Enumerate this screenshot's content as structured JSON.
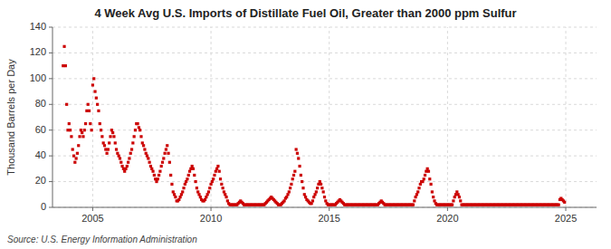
{
  "chart_data": {
    "type": "scatter",
    "title": "4 Week Avg U.S. Imports of Distillate Fuel Oil, Greater than 2000 ppm Sulfur",
    "ylabel": "Thousand Barrels per Day",
    "source": "Source: U.S. Energy Information Administration",
    "xlim": [
      2003.3,
      2026.3
    ],
    "ylim": [
      0,
      140
    ],
    "xticks": [
      2005,
      2010,
      2015,
      2020,
      2025
    ],
    "yticks": [
      0,
      20,
      40,
      60,
      80,
      100,
      120,
      140
    ],
    "grid": true,
    "color": "#cc0000",
    "marker": "square",
    "x": [
      2003.75,
      2003.8,
      2003.85,
      2003.9,
      2003.95,
      2004.0,
      2004.05,
      2004.1,
      2004.15,
      2004.2,
      2004.25,
      2004.3,
      2004.35,
      2004.4,
      2004.45,
      2004.5,
      2004.55,
      2004.6,
      2004.65,
      2004.7,
      2004.75,
      2004.8,
      2004.85,
      2004.9,
      2004.95,
      2005.0,
      2005.05,
      2005.1,
      2005.15,
      2005.2,
      2005.25,
      2005.3,
      2005.35,
      2005.4,
      2005.45,
      2005.5,
      2005.55,
      2005.6,
      2005.65,
      2005.7,
      2005.75,
      2005.8,
      2005.85,
      2005.9,
      2005.95,
      2006.0,
      2006.05,
      2006.1,
      2006.15,
      2006.2,
      2006.25,
      2006.3,
      2006.35,
      2006.4,
      2006.45,
      2006.5,
      2006.55,
      2006.6,
      2006.65,
      2006.7,
      2006.75,
      2006.8,
      2006.85,
      2006.9,
      2006.95,
      2007.0,
      2007.05,
      2007.1,
      2007.15,
      2007.2,
      2007.25,
      2007.3,
      2007.35,
      2007.4,
      2007.45,
      2007.5,
      2007.55,
      2007.6,
      2007.65,
      2007.7,
      2007.75,
      2007.8,
      2007.85,
      2007.9,
      2007.95,
      2008.0,
      2008.05,
      2008.1,
      2008.15,
      2008.2,
      2008.25,
      2008.3,
      2008.35,
      2008.4,
      2008.45,
      2008.5,
      2008.55,
      2008.6,
      2008.65,
      2008.7,
      2008.75,
      2008.8,
      2008.85,
      2008.9,
      2008.95,
      2009.0,
      2009.05,
      2009.1,
      2009.15,
      2009.2,
      2009.25,
      2009.3,
      2009.35,
      2009.4,
      2009.45,
      2009.5,
      2009.55,
      2009.6,
      2009.65,
      2009.7,
      2009.75,
      2009.8,
      2009.85,
      2009.9,
      2009.95,
      2010.0,
      2010.05,
      2010.1,
      2010.15,
      2010.2,
      2010.25,
      2010.3,
      2010.35,
      2010.4,
      2010.45,
      2010.5,
      2010.55,
      2010.6,
      2010.65,
      2010.7,
      2010.75,
      2010.8,
      2010.85,
      2010.9,
      2010.95,
      2011.0,
      2011.05,
      2011.1,
      2011.15,
      2011.2,
      2011.25,
      2011.3,
      2011.35,
      2011.4,
      2011.45,
      2011.5,
      2011.55,
      2011.6,
      2011.65,
      2011.7,
      2011.75,
      2011.8,
      2011.85,
      2011.9,
      2011.95,
      2012.0,
      2012.05,
      2012.1,
      2012.15,
      2012.2,
      2012.25,
      2012.3,
      2012.35,
      2012.4,
      2012.45,
      2012.5,
      2012.55,
      2012.6,
      2012.65,
      2012.7,
      2012.75,
      2012.8,
      2012.85,
      2012.9,
      2012.95,
      2013.0,
      2013.05,
      2013.1,
      2013.15,
      2013.2,
      2013.25,
      2013.3,
      2013.35,
      2013.4,
      2013.45,
      2013.5,
      2013.55,
      2013.6,
      2013.65,
      2013.7,
      2013.75,
      2013.8,
      2013.85,
      2013.9,
      2013.95,
      2014.0,
      2014.05,
      2014.1,
      2014.15,
      2014.2,
      2014.25,
      2014.3,
      2014.35,
      2014.4,
      2014.45,
      2014.5,
      2014.55,
      2014.6,
      2014.65,
      2014.7,
      2014.75,
      2014.8,
      2014.85,
      2014.9,
      2014.95,
      2015.0,
      2015.05,
      2015.1,
      2015.15,
      2015.2,
      2015.25,
      2015.3,
      2015.35,
      2015.4,
      2015.45,
      2015.5,
      2015.55,
      2015.6,
      2015.65,
      2015.7,
      2015.75,
      2015.8,
      2015.85,
      2015.9,
      2015.95,
      2016.0,
      2016.05,
      2016.1,
      2016.15,
      2016.2,
      2016.25,
      2016.3,
      2016.35,
      2016.4,
      2016.45,
      2016.5,
      2016.55,
      2016.6,
      2016.65,
      2016.7,
      2016.75,
      2016.8,
      2016.85,
      2016.9,
      2016.95,
      2017.0,
      2017.05,
      2017.1,
      2017.15,
      2017.2,
      2017.25,
      2017.3,
      2017.35,
      2017.4,
      2017.45,
      2017.5,
      2017.55,
      2017.6,
      2017.65,
      2017.7,
      2017.75,
      2017.8,
      2017.85,
      2017.9,
      2017.95,
      2018.0,
      2018.05,
      2018.1,
      2018.15,
      2018.2,
      2018.25,
      2018.3,
      2018.35,
      2018.4,
      2018.45,
      2018.5,
      2018.55,
      2018.6,
      2018.65,
      2018.7,
      2018.75,
      2018.8,
      2018.85,
      2018.9,
      2018.95,
      2019.0,
      2019.05,
      2019.1,
      2019.15,
      2019.2,
      2019.25,
      2019.3,
      2019.35,
      2019.4,
      2019.45,
      2019.5,
      2019.55,
      2019.6,
      2019.65,
      2019.7,
      2019.75,
      2019.8,
      2019.85,
      2019.9,
      2019.95,
      2020.0,
      2020.05,
      2020.1,
      2020.15,
      2020.2,
      2020.25,
      2020.3,
      2020.35,
      2020.4,
      2020.45,
      2020.5,
      2020.55,
      2020.6,
      2020.65,
      2020.7,
      2020.75,
      2020.8,
      2020.85,
      2020.9,
      2020.95,
      2021.0,
      2021.05,
      2021.1,
      2021.15,
      2021.2,
      2021.25,
      2021.3,
      2021.35,
      2021.4,
      2021.45,
      2021.5,
      2021.55,
      2021.6,
      2021.65,
      2021.7,
      2021.75,
      2021.8,
      2021.85,
      2021.9,
      2021.95,
      2022.0,
      2022.05,
      2022.1,
      2022.15,
      2022.2,
      2022.25,
      2022.3,
      2022.35,
      2022.4,
      2022.45,
      2022.5,
      2022.55,
      2022.6,
      2022.65,
      2022.7,
      2022.75,
      2022.8,
      2022.85,
      2022.9,
      2022.95,
      2023.0,
      2023.05,
      2023.1,
      2023.15,
      2023.2,
      2023.25,
      2023.3,
      2023.35,
      2023.4,
      2023.45,
      2023.5,
      2023.55,
      2023.6,
      2023.65,
      2023.7,
      2023.75,
      2023.8,
      2023.85,
      2023.9,
      2023.95,
      2024.0,
      2024.05,
      2024.1,
      2024.15,
      2024.2,
      2024.25,
      2024.3,
      2024.35,
      2024.4,
      2024.45,
      2024.5,
      2024.55,
      2024.6,
      2024.65,
      2024.7,
      2024.75,
      2024.8,
      2024.85,
      2024.9,
      2024.95
    ],
    "values": [
      110,
      125,
      110,
      80,
      60,
      65,
      60,
      55,
      45,
      40,
      35,
      38,
      42,
      48,
      55,
      60,
      58,
      55,
      60,
      65,
      75,
      80,
      75,
      65,
      60,
      95,
      100,
      90,
      85,
      80,
      75,
      65,
      60,
      55,
      50,
      48,
      45,
      42,
      45,
      50,
      55,
      60,
      58,
      55,
      50,
      45,
      42,
      40,
      38,
      35,
      32,
      30,
      28,
      30,
      32,
      35,
      38,
      42,
      45,
      50,
      55,
      60,
      65,
      65,
      62,
      60,
      55,
      50,
      48,
      45,
      42,
      40,
      38,
      35,
      32,
      30,
      28,
      25,
      22,
      20,
      22,
      25,
      28,
      32,
      35,
      38,
      42,
      45,
      48,
      42,
      35,
      25,
      18,
      12,
      10,
      8,
      5,
      5,
      6,
      8,
      10,
      12,
      15,
      18,
      20,
      22,
      25,
      28,
      30,
      32,
      30,
      25,
      20,
      15,
      12,
      10,
      8,
      6,
      5,
      5,
      6,
      8,
      10,
      12,
      15,
      18,
      20,
      22,
      25,
      28,
      30,
      32,
      28,
      22,
      18,
      15,
      12,
      10,
      8,
      5,
      3,
      2,
      2,
      2,
      2,
      2,
      2,
      2,
      3,
      4,
      5,
      4,
      3,
      2,
      2,
      2,
      2,
      2,
      2,
      2,
      2,
      2,
      2,
      2,
      2,
      2,
      2,
      2,
      2,
      2,
      2,
      3,
      4,
      5,
      6,
      7,
      8,
      7,
      6,
      5,
      4,
      3,
      2,
      2,
      2,
      3,
      4,
      5,
      7,
      8,
      10,
      12,
      15,
      18,
      22,
      25,
      28,
      45,
      42,
      38,
      32,
      25,
      20,
      15,
      10,
      8,
      6,
      5,
      4,
      3,
      3,
      5,
      8,
      10,
      12,
      15,
      18,
      20,
      18,
      15,
      12,
      8,
      5,
      3,
      2,
      2,
      2,
      2,
      2,
      2,
      2,
      3,
      4,
      5,
      6,
      5,
      4,
      3,
      2,
      2,
      2,
      2,
      2,
      2,
      2,
      2,
      2,
      2,
      2,
      2,
      2,
      2,
      2,
      2,
      2,
      2,
      2,
      2,
      2,
      2,
      2,
      2,
      2,
      2,
      2,
      2,
      2,
      3,
      4,
      5,
      4,
      3,
      2,
      2,
      2,
      2,
      2,
      2,
      2,
      2,
      2,
      2,
      2,
      2,
      2,
      2,
      2,
      2,
      2,
      2,
      2,
      2,
      2,
      2,
      2,
      2,
      2,
      5,
      8,
      10,
      12,
      15,
      18,
      20,
      20,
      22,
      25,
      28,
      30,
      28,
      22,
      18,
      12,
      8,
      5,
      3,
      2,
      2,
      2,
      2,
      2,
      2,
      2,
      2,
      2,
      2,
      2,
      2,
      2,
      2,
      5,
      8,
      10,
      12,
      10,
      8,
      5,
      2,
      2,
      2,
      2,
      2,
      2,
      2,
      2,
      2,
      2,
      2,
      2,
      2,
      2,
      2,
      2,
      2,
      2,
      2,
      2,
      2,
      2,
      2,
      2,
      2,
      2,
      2,
      2,
      2,
      2,
      2,
      2,
      2,
      2,
      2,
      2,
      2,
      2,
      2,
      2,
      2,
      2,
      2,
      2,
      2,
      2,
      2,
      2,
      2,
      2,
      2,
      2,
      2,
      2,
      2,
      2,
      2,
      2,
      2,
      2,
      2,
      2,
      2,
      2,
      2,
      2,
      2,
      2,
      2,
      2,
      2,
      2,
      2,
      2,
      2,
      2,
      2,
      2,
      2,
      2,
      2,
      2,
      2,
      6,
      7,
      6,
      5,
      4
    ]
  }
}
